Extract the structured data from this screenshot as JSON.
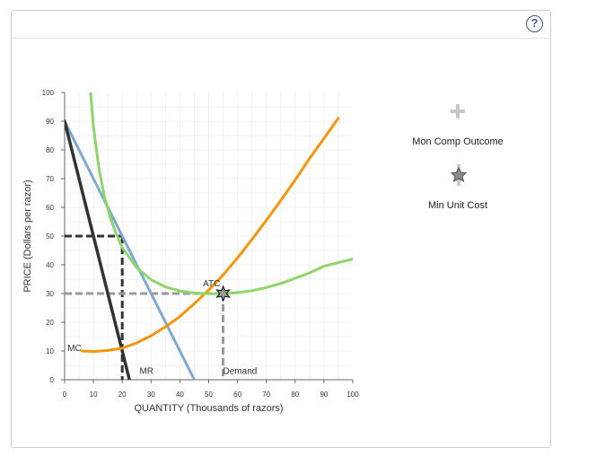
{
  "help": {
    "label": "?"
  },
  "chart_data": {
    "type": "line",
    "xlabel": "QUANTITY (Thousands of razors)",
    "ylabel": "PRICE (Dollars per razor)",
    "xlim": [
      0,
      100
    ],
    "ylim": [
      0,
      100
    ],
    "xticks": [
      0,
      10,
      20,
      30,
      40,
      50,
      60,
      70,
      80,
      90,
      100
    ],
    "yticks": [
      0,
      10,
      20,
      30,
      40,
      50,
      60,
      70,
      80,
      90,
      100
    ],
    "grid": true,
    "series": [
      {
        "name": "Demand",
        "color": "#7fa8d3",
        "points": [
          [
            0,
            90
          ],
          [
            45,
            0
          ]
        ]
      },
      {
        "name": "MR",
        "color": "#333333",
        "points": [
          [
            0,
            90
          ],
          [
            22.5,
            0
          ]
        ]
      },
      {
        "name": "MC",
        "color": "#f5960a",
        "points": [
          [
            6,
            10
          ],
          [
            10,
            9.8
          ],
          [
            15,
            10.2
          ],
          [
            20,
            11
          ],
          [
            25,
            12.8
          ],
          [
            30,
            15.3
          ],
          [
            35,
            18.4
          ],
          [
            40,
            22
          ],
          [
            45,
            26.5
          ],
          [
            50,
            31.2
          ],
          [
            55,
            36.5
          ],
          [
            60,
            42.4
          ],
          [
            65,
            48.8
          ],
          [
            70,
            55.5
          ],
          [
            75,
            62.4
          ],
          [
            80,
            69.5
          ],
          [
            85,
            77
          ],
          [
            90,
            84
          ],
          [
            95,
            91
          ]
        ]
      },
      {
        "name": "ATC",
        "color": "#8dd66a",
        "points": [
          [
            9,
            100
          ],
          [
            10,
            88
          ],
          [
            12,
            73
          ],
          [
            14,
            63
          ],
          [
            16,
            56
          ],
          [
            18,
            50.5
          ],
          [
            20,
            46
          ],
          [
            25,
            39
          ],
          [
            30,
            34.8
          ],
          [
            35,
            32.3
          ],
          [
            40,
            30.9
          ],
          [
            45,
            30.2
          ],
          [
            50,
            29.9
          ],
          [
            55,
            30
          ],
          [
            60,
            30.3
          ],
          [
            65,
            31
          ],
          [
            70,
            32.1
          ],
          [
            75,
            33.5
          ],
          [
            80,
            35.3
          ],
          [
            85,
            37.2
          ],
          [
            90,
            39.5
          ],
          [
            100,
            42
          ]
        ]
      }
    ],
    "curve_labels": [
      {
        "text": "ATC",
        "x": 48,
        "y": 32.5
      },
      {
        "text": "MC",
        "x": 1,
        "y": 10
      },
      {
        "text": "MR",
        "x": 26,
        "y": 2
      },
      {
        "text": "Demand",
        "x": 55,
        "y": 2
      }
    ],
    "dropped_lines": [
      {
        "tool": "Mon Comp Outcome",
        "color": "#333333",
        "q": 20,
        "p": 50
      },
      {
        "tool": "Min Unit Cost",
        "color": "#9a9a9a",
        "q": 55,
        "p": 30
      }
    ],
    "point_markers": [
      {
        "tool": "Min Unit Cost",
        "x": 55,
        "y": 30
      }
    ]
  },
  "tools": [
    {
      "name": "Mon Comp Outcome",
      "icon": "plus-icon",
      "color": "#c8c8c8"
    },
    {
      "name": "Min Unit Cost",
      "icon": "star-icon",
      "color": "#8a8a8a"
    }
  ]
}
